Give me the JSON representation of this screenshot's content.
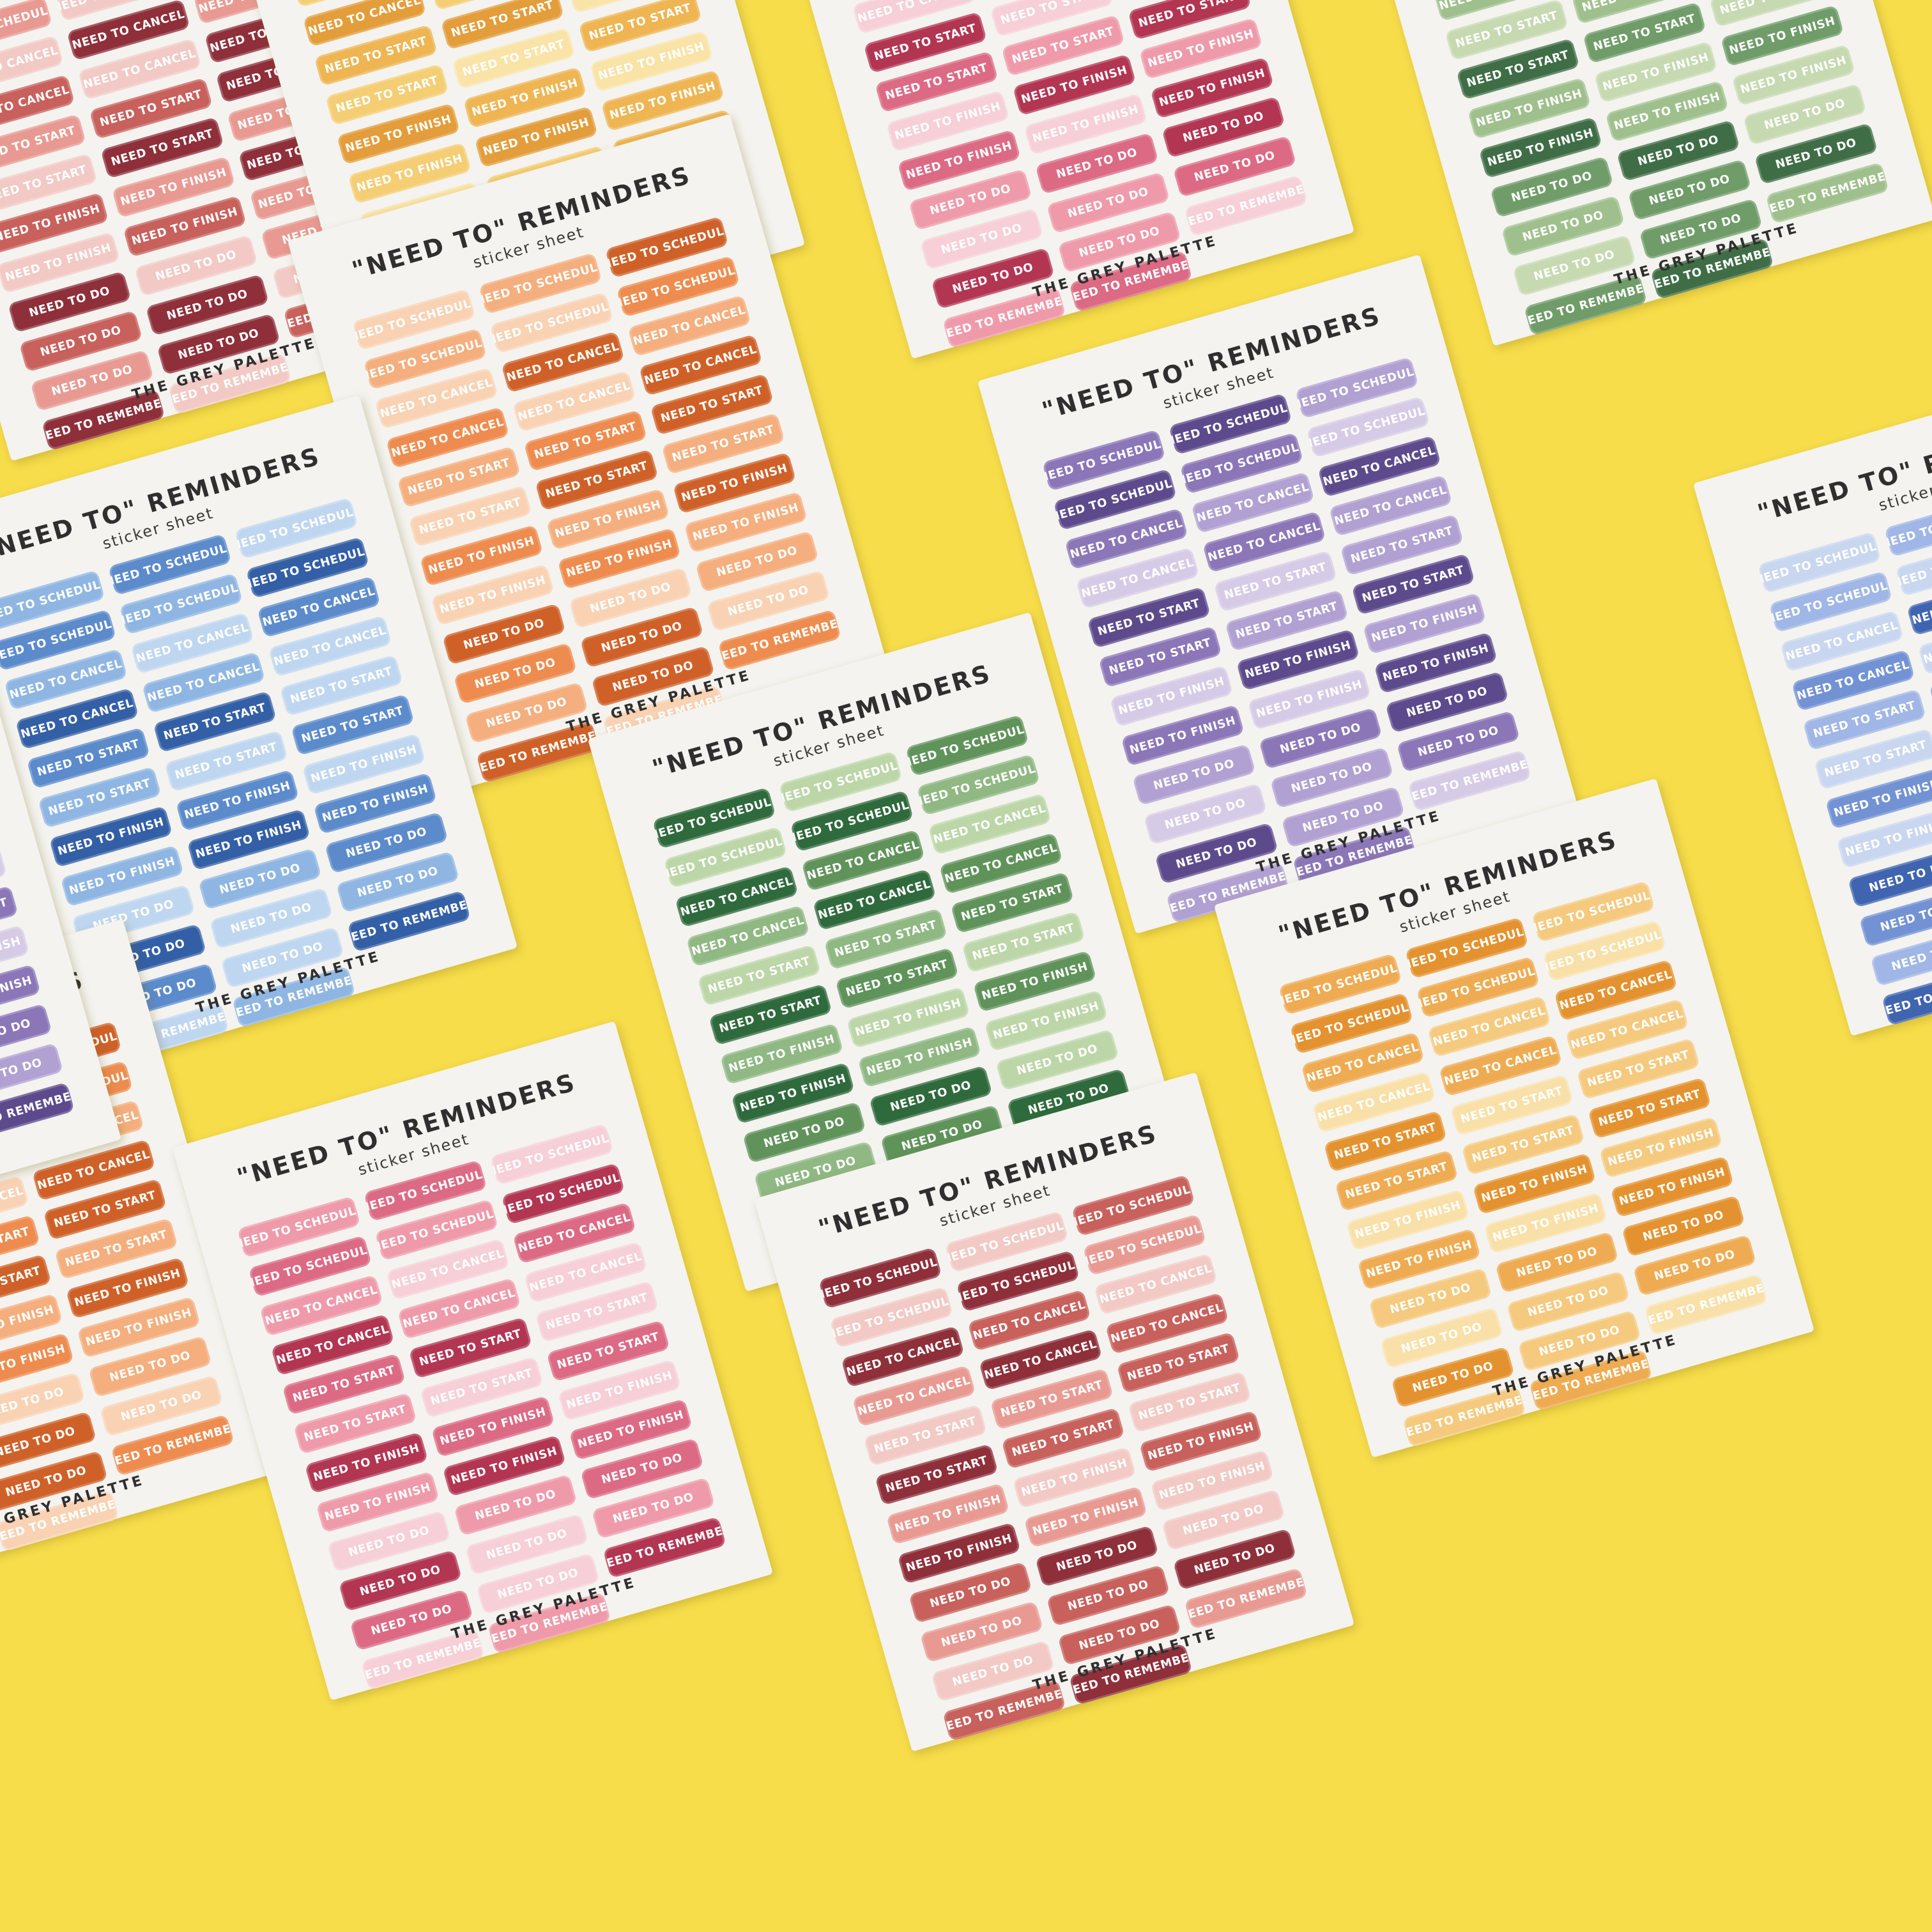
{
  "sheet_text": {
    "title": "\"NEED TO\" REMINDERS",
    "subtitle": "sticker sheet",
    "brand": "THE GREY PALETTE"
  },
  "sticker_labels": [
    "NEED TO SCHEDULE",
    "NEED TO SCHEDULE",
    "NEED TO SCHEDULE",
    "NEED TO SCHEDULE",
    "NEED TO SCHEDULE",
    "NEED TO SCHEDULE",
    "NEED TO CANCEL",
    "NEED TO CANCEL",
    "NEED TO CANCEL",
    "NEED TO CANCEL",
    "NEED TO CANCEL",
    "NEED TO CANCEL",
    "NEED TO START",
    "NEED TO START",
    "NEED TO START",
    "NEED TO START",
    "NEED TO START",
    "NEED TO START",
    "NEED TO FINISH",
    "NEED TO FINISH",
    "NEED TO FINISH",
    "NEED TO FINISH",
    "NEED TO FINISH",
    "NEED TO FINISH",
    "NEED TO DO",
    "NEED TO DO",
    "NEED TO DO",
    "NEED TO DO",
    "NEED TO DO",
    "NEED TO DO",
    "NEED TO DO",
    "NEED TO DO",
    "NEED TO REMEMBER",
    "NEED TO REMEMBER",
    "NEED TO REMEMBER",
    ""
  ],
  "background_color": "#f7dd4a",
  "sheets": [
    {
      "palette": "burgundy",
      "colors": [
        "#f2c9c4",
        "#e89a92",
        "#c8605c",
        "#8e2f3a"
      ]
    },
    {
      "palette": "yellow",
      "colors": [
        "#f9e3a6",
        "#f5cd73",
        "#eeb552",
        "#e39d3a"
      ]
    },
    {
      "palette": "pink",
      "colors": [
        "#f7cfd6",
        "#ef9aaa",
        "#dc6a84",
        "#b23552"
      ]
    },
    {
      "palette": "sage-green",
      "colors": [
        "#c6d9b0",
        "#9fc08d",
        "#6f9c68",
        "#3f6e46"
      ]
    },
    {
      "palette": "orange",
      "colors": [
        "#f9d2b4",
        "#f5ae7d",
        "#ee8c4f",
        "#cf6128"
      ]
    },
    {
      "palette": "blue",
      "colors": [
        "#bfd6f0",
        "#8fb6e3",
        "#5c8bcc",
        "#335fa6"
      ]
    },
    {
      "palette": "purple",
      "colors": [
        "#d6cbe6",
        "#b1a0d2",
        "#8b76b8",
        "#5d4a8c"
      ]
    },
    {
      "palette": "green",
      "colors": [
        "#bcd6a8",
        "#8fb883",
        "#5f935a",
        "#2f6a3c"
      ]
    },
    {
      "palette": "peach",
      "colors": [
        "#f9d2b4",
        "#f5ae7d",
        "#ee8c4f",
        "#cf6128"
      ]
    },
    {
      "palette": "pink",
      "colors": [
        "#f7cfd6",
        "#ef9aaa",
        "#dc6a84",
        "#b23552"
      ]
    },
    {
      "palette": "amber",
      "colors": [
        "#f9e0a8",
        "#f5c97e",
        "#efab52",
        "#e4922f"
      ]
    },
    {
      "palette": "burgundy",
      "colors": [
        "#f2c9c4",
        "#e89a92",
        "#c8605c",
        "#8e2f3a"
      ]
    },
    {
      "palette": "periwinkle",
      "colors": [
        "#c8d6f0",
        "#9fb6e6",
        "#7292d4",
        "#3f64b0"
      ]
    },
    {
      "palette": "lavender",
      "colors": [
        "#d6cbe6",
        "#b1a0d2",
        "#8b76b8",
        "#5d4a8c"
      ]
    }
  ]
}
